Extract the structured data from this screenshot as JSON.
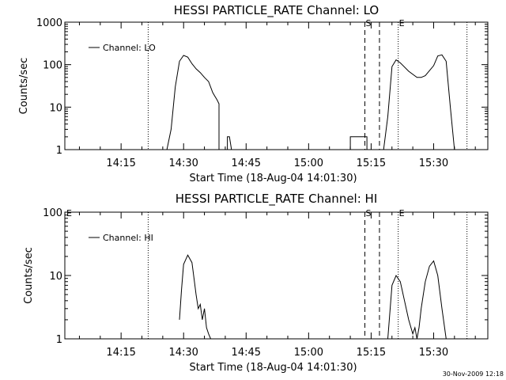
{
  "timestamp": "30-Nov-2009 12:18",
  "chart_data": [
    {
      "type": "line",
      "title": "HESSI PARTICLE_RATE Channel: LO",
      "xlabel": "Start Time (18-Aug-04 14:01:30)",
      "ylabel": "Counts/sec",
      "yscale": "log",
      "ylim": [
        1,
        1000
      ],
      "xlim": [
        "14:01:30",
        "15:43:00"
      ],
      "x_tick_labels": [
        "14:15",
        "14:30",
        "14:45",
        "15:00",
        "15:15",
        "15:30"
      ],
      "y_tick_labels": [
        "1",
        "10",
        "100",
        "1000"
      ],
      "legend": "top-left",
      "series": [
        {
          "name": "Channel: LO",
          "x": [
            "14:26:00",
            "14:27:00",
            "14:28:00",
            "14:29:00",
            "14:30:00",
            "14:31:00",
            "14:32:00",
            "14:33:00",
            "14:34:00",
            "14:35:00",
            "14:36:00",
            "14:37:00",
            "14:37:30",
            "14:38:00",
            "14:38:30",
            "14:38:30",
            "14:40:30",
            "14:40:30",
            "14:41:00",
            "14:41:30",
            "15:09:30",
            "15:10:00",
            "15:10:00",
            "15:14:00",
            "15:14:00",
            "15:14:30",
            "15:18:00",
            "15:19:00",
            "15:20:00",
            "15:21:00",
            "15:22:00",
            "15:24:00",
            "15:26:00",
            "15:27:00",
            "15:28:00",
            "15:30:00",
            "15:31:00",
            "15:32:00",
            "15:33:00",
            "15:34:00",
            "15:35:00"
          ],
          "y": [
            1,
            3,
            30,
            120,
            165,
            150,
            105,
            80,
            65,
            50,
            40,
            22,
            18,
            15,
            12,
            1,
            1,
            2,
            2,
            1,
            1,
            1,
            2,
            2,
            1,
            1,
            1,
            6,
            90,
            130,
            110,
            70,
            50,
            50,
            55,
            95,
            160,
            170,
            120,
            10,
            1
          ]
        }
      ],
      "vertical_markers": [
        {
          "label": "",
          "time": "14:21:30",
          "style": "dotted"
        },
        {
          "label": "S",
          "time": "15:13:30",
          "style": "dashed"
        },
        {
          "label": "",
          "time": "15:17:00",
          "style": "dashed"
        },
        {
          "label": "E",
          "time": "15:21:30",
          "style": "dotted"
        },
        {
          "label": "",
          "time": "15:38:00",
          "style": "dotted"
        }
      ]
    },
    {
      "type": "line",
      "title": "HESSI PARTICLE_RATE Channel: HI",
      "xlabel": "Start Time (18-Aug-04 14:01:30)",
      "ylabel": "Counts/sec",
      "yscale": "log",
      "ylim": [
        1,
        100
      ],
      "xlim": [
        "14:01:30",
        "15:43:00"
      ],
      "x_tick_labels": [
        "14:15",
        "14:30",
        "14:45",
        "15:00",
        "15:15",
        "15:30"
      ],
      "y_tick_labels": [
        "1",
        "10",
        "100"
      ],
      "legend": "top-left",
      "series": [
        {
          "name": "Channel: HI",
          "x": [
            "14:29:00",
            "14:29:30",
            "14:30:00",
            "14:31:00",
            "14:32:00",
            "14:32:30",
            "14:33:00",
            "14:33:30",
            "14:34:00",
            "14:34:30",
            "14:35:00",
            "14:35:30",
            "14:36:00",
            "14:36:30",
            "15:19:00",
            "15:20:00",
            "15:21:00",
            "15:22:00",
            "15:23:00",
            "15:24:00",
            "15:25:00",
            "15:25:30",
            "15:26:00",
            "15:26:30",
            "15:27:00",
            "15:28:00",
            "15:29:00",
            "15:30:00",
            "15:31:00",
            "15:32:00",
            "15:33:00"
          ],
          "y": [
            2,
            6,
            15,
            21,
            16,
            9,
            5,
            3,
            3.5,
            2,
            3,
            1.5,
            1.2,
            1,
            1,
            7,
            10,
            8,
            4,
            2,
            1.2,
            1.5,
            1,
            1.5,
            3,
            8,
            14,
            17,
            10,
            3,
            1
          ]
        }
      ],
      "vertical_markers": [
        {
          "label": "E",
          "time": "14:01:30",
          "style": "none"
        },
        {
          "label": "",
          "time": "14:21:30",
          "style": "dotted"
        },
        {
          "label": "S",
          "time": "15:13:30",
          "style": "dashed"
        },
        {
          "label": "",
          "time": "15:17:00",
          "style": "dashed"
        },
        {
          "label": "E",
          "time": "15:21:30",
          "style": "dotted"
        },
        {
          "label": "",
          "time": "15:38:00",
          "style": "dotted"
        }
      ]
    }
  ]
}
